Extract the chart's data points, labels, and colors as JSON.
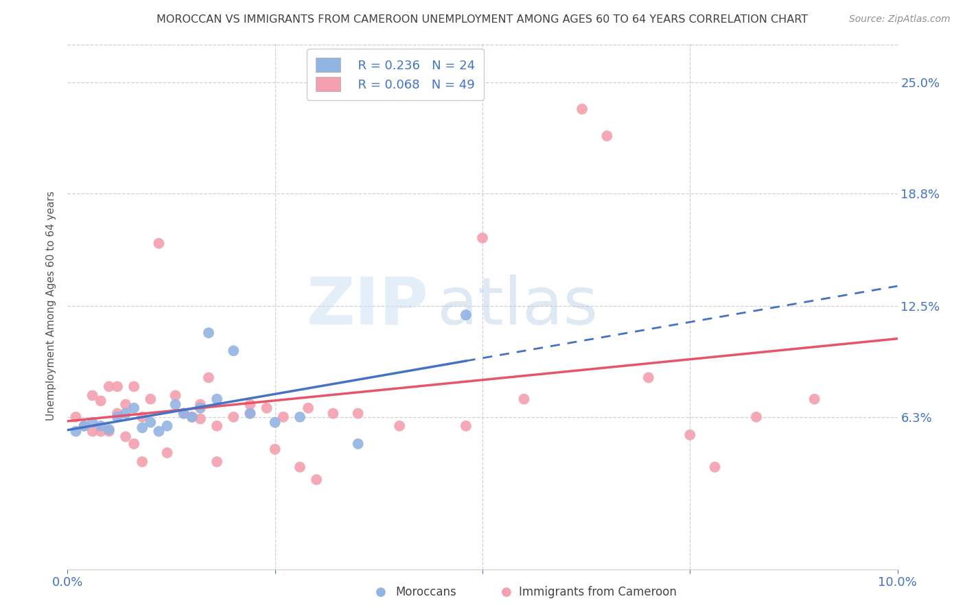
{
  "title": "MOROCCAN VS IMMIGRANTS FROM CAMEROON UNEMPLOYMENT AMONG AGES 60 TO 64 YEARS CORRELATION CHART",
  "source": "Source: ZipAtlas.com",
  "ylabel": "Unemployment Among Ages 60 to 64 years",
  "ytick_labels": [
    "25.0%",
    "18.8%",
    "12.5%",
    "6.3%"
  ],
  "ytick_values": [
    0.25,
    0.188,
    0.125,
    0.063
  ],
  "xmin": 0.0,
  "xmax": 0.1,
  "ymin": -0.022,
  "ymax": 0.272,
  "legend1_r": "R = 0.236",
  "legend1_n": "N = 24",
  "legend2_r": "R = 0.068",
  "legend2_n": "N = 49",
  "color_moroccan": "#92b4e3",
  "color_cameroon": "#f4a0b0",
  "color_line_moroccan": "#4472c4",
  "color_line_cameroon": "#e8546a",
  "color_blue": "#4472c4",
  "color_title": "#404040",
  "color_source": "#909090",
  "moroccan_x": [
    0.001,
    0.002,
    0.003,
    0.004,
    0.005,
    0.006,
    0.007,
    0.008,
    0.009,
    0.01,
    0.011,
    0.012,
    0.013,
    0.014,
    0.015,
    0.016,
    0.017,
    0.018,
    0.02,
    0.022,
    0.025,
    0.028,
    0.035,
    0.048
  ],
  "moroccan_y": [
    0.055,
    0.058,
    0.06,
    0.058,
    0.056,
    0.063,
    0.065,
    0.068,
    0.057,
    0.06,
    0.055,
    0.058,
    0.07,
    0.065,
    0.063,
    0.068,
    0.11,
    0.073,
    0.1,
    0.065,
    0.06,
    0.063,
    0.048,
    0.12
  ],
  "cameroon_x": [
    0.001,
    0.002,
    0.003,
    0.003,
    0.004,
    0.004,
    0.005,
    0.005,
    0.006,
    0.006,
    0.007,
    0.007,
    0.008,
    0.008,
    0.009,
    0.009,
    0.01,
    0.011,
    0.012,
    0.013,
    0.014,
    0.015,
    0.016,
    0.016,
    0.017,
    0.018,
    0.018,
    0.02,
    0.022,
    0.022,
    0.024,
    0.025,
    0.026,
    0.028,
    0.029,
    0.03,
    0.032,
    0.035,
    0.04,
    0.048,
    0.05,
    0.055,
    0.062,
    0.065,
    0.07,
    0.075,
    0.078,
    0.083,
    0.09
  ],
  "cameroon_y": [
    0.063,
    0.058,
    0.075,
    0.055,
    0.072,
    0.055,
    0.08,
    0.055,
    0.08,
    0.065,
    0.07,
    0.052,
    0.08,
    0.048,
    0.063,
    0.038,
    0.073,
    0.16,
    0.043,
    0.075,
    0.065,
    0.063,
    0.07,
    0.062,
    0.085,
    0.058,
    0.038,
    0.063,
    0.07,
    0.065,
    0.068,
    0.045,
    0.063,
    0.035,
    0.068,
    0.028,
    0.065,
    0.065,
    0.058,
    0.058,
    0.163,
    0.073,
    0.235,
    0.22,
    0.085,
    0.053,
    0.035,
    0.063,
    0.073
  ],
  "watermark_zip": "ZIP",
  "watermark_atlas": "atlas"
}
